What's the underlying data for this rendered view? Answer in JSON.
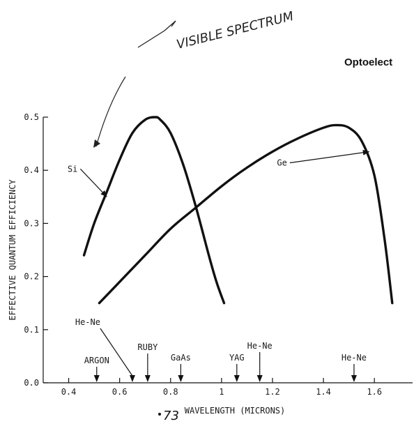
{
  "header": {
    "text": "Optoelect"
  },
  "handwriting": {
    "note": "VISIBLE SPECTRUM",
    "page_number": "73"
  },
  "chart_data": {
    "type": "line",
    "title": "",
    "xlabel": "WAVELENGTH (MICRONS)",
    "ylabel": "EFFECTIVE QUANTUM EFFICIENCY",
    "xlim": [
      0.3,
      1.75
    ],
    "ylim": [
      0.0,
      0.5
    ],
    "x_ticks": [
      "0.4",
      "0.6",
      "0.8",
      "1",
      "1.2",
      "1.4",
      "1.6"
    ],
    "x_tick_values": [
      0.4,
      0.6,
      0.8,
      1.0,
      1.2,
      1.4,
      1.6
    ],
    "y_ticks": [
      "0.0",
      "0.1",
      "0.2",
      "0.3",
      "0.4",
      "0.5"
    ],
    "y_tick_values": [
      0.0,
      0.1,
      0.2,
      0.3,
      0.4,
      0.5
    ],
    "grid": false,
    "series": [
      {
        "name": "Si",
        "x": [
          0.46,
          0.5,
          0.55,
          0.6,
          0.65,
          0.7,
          0.74,
          0.76,
          0.8,
          0.85,
          0.9,
          0.95,
          0.98,
          1.01
        ],
        "y": [
          0.24,
          0.3,
          0.36,
          0.42,
          0.47,
          0.495,
          0.5,
          0.495,
          0.47,
          0.41,
          0.33,
          0.24,
          0.19,
          0.15
        ]
      },
      {
        "name": "Ge",
        "x": [
          0.52,
          0.6,
          0.7,
          0.8,
          0.9,
          1.0,
          1.1,
          1.2,
          1.3,
          1.4,
          1.45,
          1.5,
          1.55,
          1.6,
          1.64,
          1.67
        ],
        "y": [
          0.15,
          0.19,
          0.24,
          0.29,
          0.33,
          0.37,
          0.405,
          0.435,
          0.46,
          0.48,
          0.485,
          0.48,
          0.455,
          0.39,
          0.27,
          0.15
        ]
      }
    ],
    "annotations": [
      {
        "text": "Si",
        "target_x": 0.55,
        "target_y": 0.35
      },
      {
        "text": "Ge",
        "target_x": 1.58,
        "target_y": 0.435
      }
    ],
    "markers": [
      {
        "text": "ARGON",
        "x": 0.51
      },
      {
        "text": "He-Ne",
        "x": 0.65
      },
      {
        "text": "RUBY",
        "x": 0.71
      },
      {
        "text": "GaAs",
        "x": 0.84
      },
      {
        "text": "YAG",
        "x": 1.06
      },
      {
        "text": "He-Ne",
        "x": 1.15
      },
      {
        "text": "He-Ne",
        "x": 1.52
      }
    ]
  }
}
